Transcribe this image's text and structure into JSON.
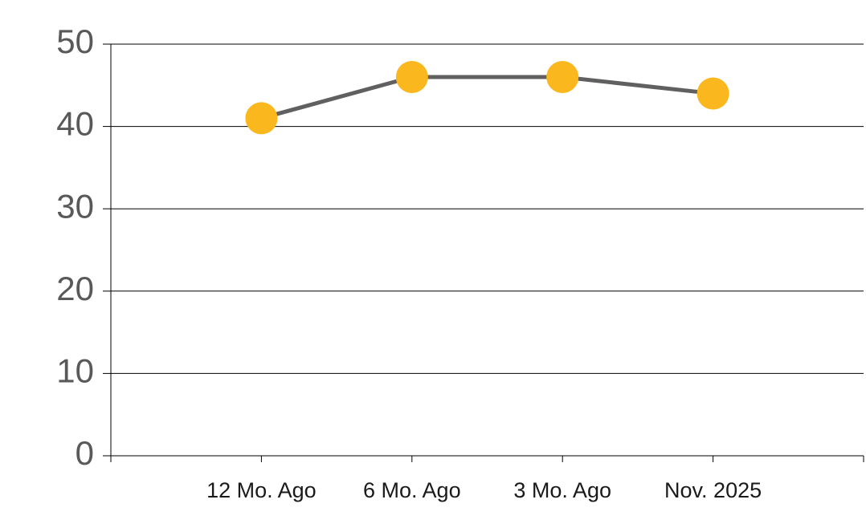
{
  "chart_data": {
    "type": "line",
    "categories": [
      "12 Mo. Ago",
      "6 Mo. Ago",
      "3 Mo. Ago",
      "Nov. 2025"
    ],
    "series": [
      {
        "color": "#fbb71e",
        "line_color": "#606060",
        "values": [
          41,
          46,
          46,
          44
        ]
      }
    ],
    "ylim": [
      0,
      50
    ],
    "yticks": [
      0,
      10,
      20,
      30,
      40,
      50
    ],
    "grid": true
  }
}
